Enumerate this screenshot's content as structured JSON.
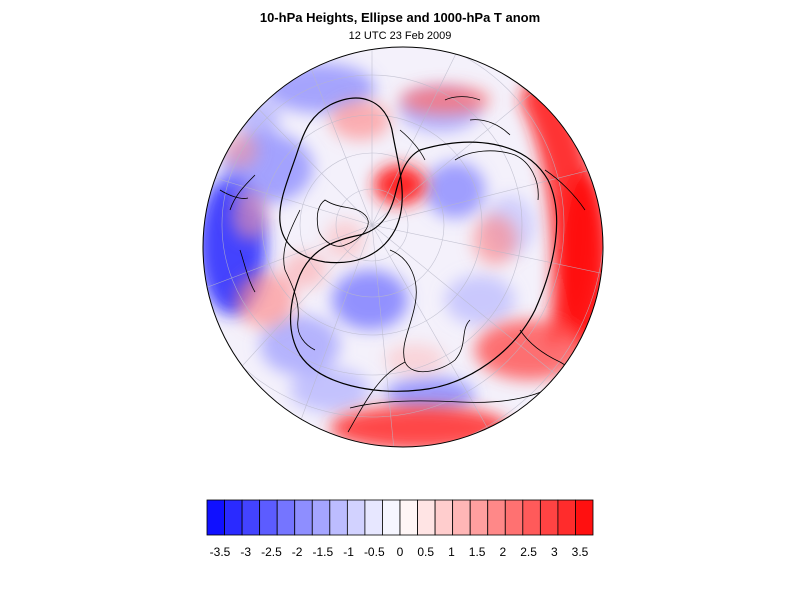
{
  "header": {
    "title": "10-hPa Heights, Ellipse and 1000-hPa T anom",
    "subtitle": "12 UTC 23 Feb 2009"
  },
  "colorbar": {
    "labels": [
      "-3.5",
      "-3",
      "-2.5",
      "-2",
      "-1.5",
      "-1",
      "-0.5",
      "0",
      "0.5",
      "1",
      "1.5",
      "2",
      "2.5",
      "3",
      "3.5"
    ],
    "colors": [
      "#1010ff",
      "#2a2aff",
      "#4343ff",
      "#5c5cff",
      "#7575ff",
      "#8e8eff",
      "#a5a5ff",
      "#bcbcff",
      "#d2d2ff",
      "#e7e7ff",
      "#f6f6ff",
      "#fff6f6",
      "#ffe4e4",
      "#ffcdcd",
      "#ffb6b6",
      "#ff9f9f",
      "#ff8888",
      "#ff7171",
      "#ff5a5a",
      "#ff4343",
      "#ff2c2c",
      "#ff1010"
    ]
  },
  "map": {
    "projection": "polar-orthographic",
    "hemisphere": "northern",
    "ocean_background": "#f5f2fb",
    "cold_color": "#5a5aff",
    "warm_color": "#ff3c3c",
    "contour_color": "#000000"
  }
}
